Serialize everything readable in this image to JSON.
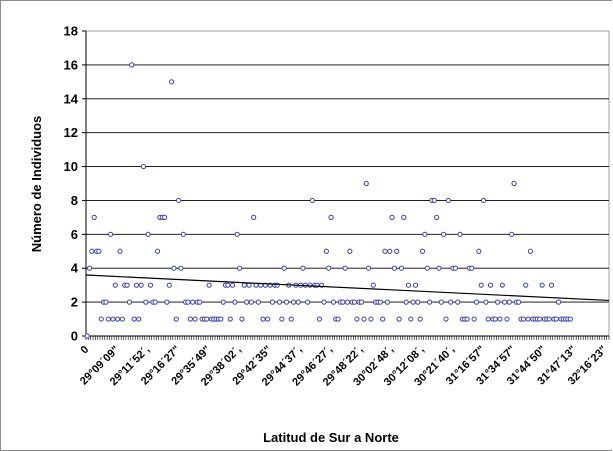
{
  "chart_data": {
    "type": "scatter",
    "title": "",
    "xlabel": "Latitud de Sur a Norte",
    "ylabel": "Número de Individuos",
    "ylim": [
      0,
      18
    ],
    "yticks": [
      "0",
      "2",
      "4",
      "6",
      "8",
      "10",
      "12",
      "14",
      "16",
      "18"
    ],
    "x_tick_labels": [
      "0",
      "29°09´09\"",
      "29°11´52´,",
      "29°16´27\"",
      "29°35´49\"",
      "29°38´02´,",
      "29°42´35\"",
      "29°44´37´,",
      "29°46´27´,",
      "29°48´22´,",
      "30°02´48´,",
      "30°12´08´,",
      "30°21´40´,",
      "31°16´57\"",
      "31°34´57\"",
      "31°44´50\"",
      "31°47´13\"",
      "32°16´23\""
    ],
    "n_categories": 223,
    "grid": true,
    "legend": "none",
    "marker_color": "#3c3cb4",
    "trendline": {
      "type": "linear",
      "start": 3.6,
      "end": 2.1,
      "color": "#000000"
    },
    "points": [
      [
        0,
        0
      ],
      [
        1,
        4
      ],
      [
        2,
        5
      ],
      [
        3,
        7
      ],
      [
        4,
        5
      ],
      [
        5,
        5
      ],
      [
        6,
        1
      ],
      [
        7,
        2
      ],
      [
        8,
        2
      ],
      [
        9,
        1
      ],
      [
        10,
        6
      ],
      [
        11,
        1
      ],
      [
        12,
        3
      ],
      [
        13,
        1
      ],
      [
        14,
        5
      ],
      [
        15,
        1
      ],
      [
        16,
        3
      ],
      [
        17,
        3
      ],
      [
        18,
        2
      ],
      [
        19,
        16
      ],
      [
        20,
        1
      ],
      [
        21,
        3
      ],
      [
        22,
        1
      ],
      [
        23,
        3
      ],
      [
        24,
        10
      ],
      [
        25,
        2
      ],
      [
        26,
        6
      ],
      [
        27,
        3
      ],
      [
        28,
        2
      ],
      [
        29,
        2
      ],
      [
        30,
        5
      ],
      [
        31,
        7
      ],
      [
        32,
        7
      ],
      [
        33,
        7
      ],
      [
        34,
        2
      ],
      [
        35,
        3
      ],
      [
        36,
        15
      ],
      [
        37,
        4
      ],
      [
        38,
        1
      ],
      [
        39,
        8
      ],
      [
        40,
        4
      ],
      [
        41,
        6
      ],
      [
        42,
        2
      ],
      [
        43,
        2
      ],
      [
        44,
        1
      ],
      [
        45,
        2
      ],
      [
        46,
        1
      ],
      [
        47,
        2
      ],
      [
        48,
        2
      ],
      [
        49,
        1
      ],
      [
        50,
        1
      ],
      [
        51,
        1
      ],
      [
        52,
        3
      ],
      [
        53,
        1
      ],
      [
        54,
        1
      ],
      [
        55,
        1
      ],
      [
        56,
        1
      ],
      [
        57,
        1
      ],
      [
        58,
        2
      ],
      [
        59,
        3
      ],
      [
        60,
        3
      ],
      [
        61,
        1
      ],
      [
        62,
        3
      ],
      [
        63,
        2
      ],
      [
        64,
        6
      ],
      [
        65,
        4
      ],
      [
        66,
        1
      ],
      [
        67,
        3
      ],
      [
        68,
        2
      ],
      [
        69,
        3
      ],
      [
        70,
        2
      ],
      [
        71,
        7
      ],
      [
        72,
        3
      ],
      [
        73,
        2
      ],
      [
        74,
        3
      ],
      [
        75,
        1
      ],
      [
        76,
        3
      ],
      [
        77,
        1
      ],
      [
        78,
        3
      ],
      [
        79,
        2
      ],
      [
        80,
        3
      ],
      [
        81,
        3
      ],
      [
        82,
        2
      ],
      [
        83,
        1
      ],
      [
        84,
        4
      ],
      [
        85,
        2
      ],
      [
        86,
        3
      ],
      [
        87,
        1
      ],
      [
        88,
        2
      ],
      [
        89,
        3
      ],
      [
        90,
        2
      ],
      [
        91,
        3
      ],
      [
        92,
        4
      ],
      [
        93,
        3
      ],
      [
        94,
        2
      ],
      [
        95,
        3
      ],
      [
        96,
        8
      ],
      [
        97,
        3
      ],
      [
        98,
        3
      ],
      [
        99,
        1
      ],
      [
        100,
        3
      ],
      [
        101,
        2
      ],
      [
        102,
        5
      ],
      [
        103,
        4
      ],
      [
        104,
        7
      ],
      [
        105,
        2
      ],
      [
        106,
        1
      ],
      [
        107,
        1
      ],
      [
        108,
        2
      ],
      [
        109,
        2
      ],
      [
        110,
        4
      ],
      [
        111,
        2
      ],
      [
        112,
        5
      ],
      [
        113,
        2
      ],
      [
        114,
        2
      ],
      [
        115,
        1
      ],
      [
        116,
        2
      ],
      [
        117,
        2
      ],
      [
        118,
        1
      ],
      [
        119,
        9
      ],
      [
        120,
        4
      ],
      [
        121,
        1
      ],
      [
        122,
        3
      ],
      [
        123,
        2
      ],
      [
        124,
        2
      ],
      [
        125,
        2
      ],
      [
        126,
        1
      ],
      [
        127,
        5
      ],
      [
        128,
        2
      ],
      [
        129,
        5
      ],
      [
        130,
        7
      ],
      [
        131,
        4
      ],
      [
        132,
        5
      ],
      [
        133,
        1
      ],
      [
        134,
        4
      ],
      [
        135,
        7
      ],
      [
        136,
        2
      ],
      [
        137,
        3
      ],
      [
        138,
        1
      ],
      [
        139,
        2
      ],
      [
        140,
        3
      ],
      [
        141,
        2
      ],
      [
        142,
        1
      ],
      [
        143,
        5
      ],
      [
        144,
        6
      ],
      [
        145,
        4
      ],
      [
        146,
        2
      ],
      [
        147,
        8
      ],
      [
        148,
        8
      ],
      [
        149,
        7
      ],
      [
        150,
        4
      ],
      [
        151,
        2
      ],
      [
        152,
        6
      ],
      [
        153,
        1
      ],
      [
        154,
        8
      ],
      [
        155,
        2
      ],
      [
        156,
        4
      ],
      [
        157,
        4
      ],
      [
        158,
        2
      ],
      [
        159,
        6
      ],
      [
        160,
        1
      ],
      [
        161,
        1
      ],
      [
        162,
        1
      ],
      [
        163,
        4
      ],
      [
        164,
        4
      ],
      [
        165,
        1
      ],
      [
        166,
        2
      ],
      [
        167,
        5
      ],
      [
        168,
        3
      ],
      [
        169,
        8
      ],
      [
        170,
        2
      ],
      [
        171,
        1
      ],
      [
        172,
        3
      ],
      [
        173,
        1
      ],
      [
        174,
        1
      ],
      [
        175,
        2
      ],
      [
        176,
        1
      ],
      [
        177,
        3
      ],
      [
        178,
        2
      ],
      [
        179,
        1
      ],
      [
        180,
        2
      ],
      [
        181,
        6
      ],
      [
        182,
        9
      ],
      [
        183,
        2
      ],
      [
        184,
        2
      ],
      [
        185,
        1
      ],
      [
        186,
        1
      ],
      [
        187,
        3
      ],
      [
        188,
        1
      ],
      [
        189,
        5
      ],
      [
        190,
        1
      ],
      [
        191,
        1
      ],
      [
        192,
        1
      ],
      [
        193,
        1
      ],
      [
        194,
        3
      ],
      [
        195,
        1
      ],
      [
        196,
        1
      ],
      [
        197,
        1
      ],
      [
        198,
        3
      ],
      [
        199,
        1
      ],
      [
        200,
        1
      ],
      [
        201,
        2
      ],
      [
        202,
        1
      ],
      [
        203,
        1
      ],
      [
        204,
        1
      ],
      [
        205,
        1
      ],
      [
        206,
        1
      ]
    ]
  }
}
